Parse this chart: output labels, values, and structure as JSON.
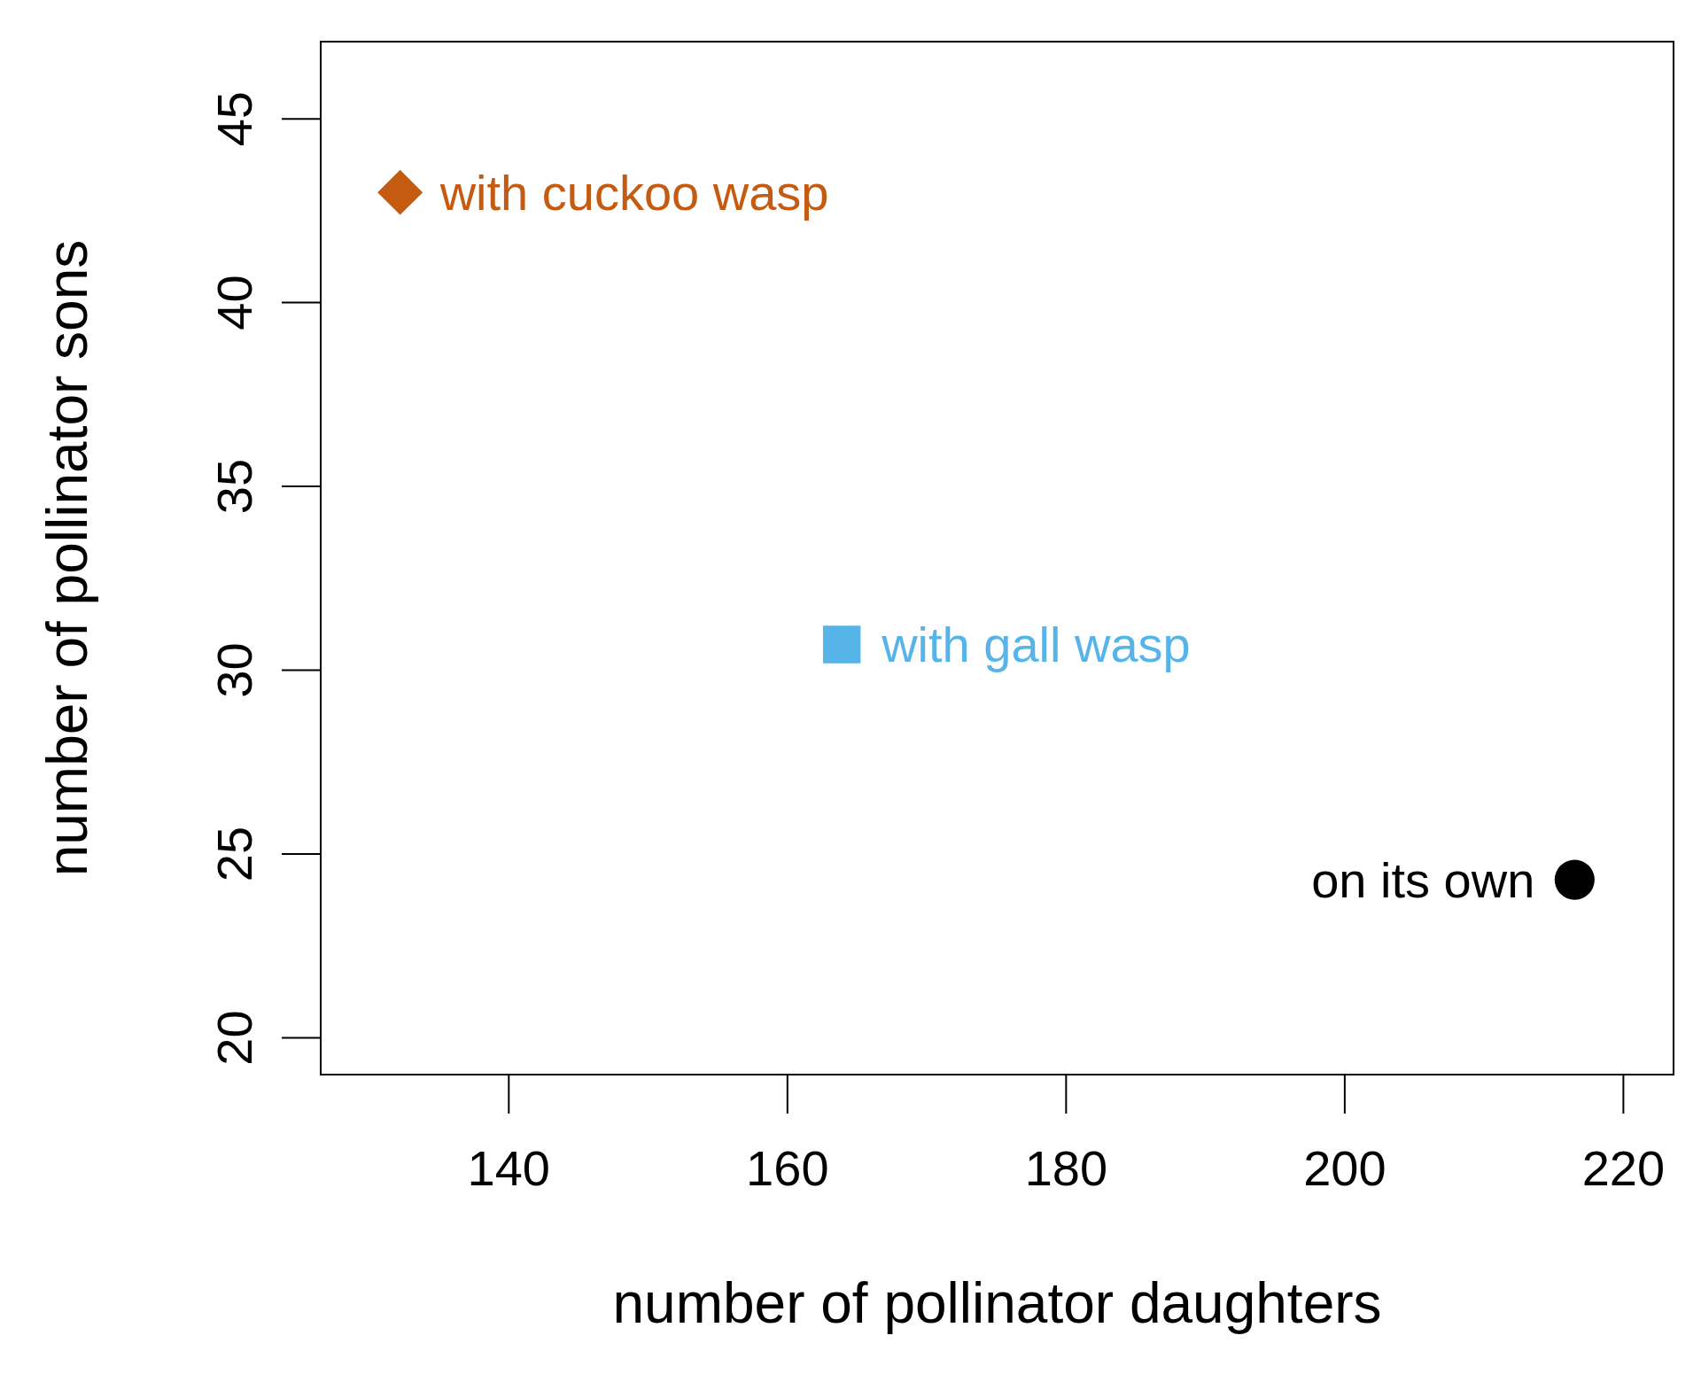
{
  "chart_data": {
    "type": "scatter",
    "xlabel": "number of pollinator daughters",
    "ylabel": "number of pollinator sons",
    "xlim": [
      126.5,
      223.6
    ],
    "ylim": [
      19,
      47.1
    ],
    "xticks": [
      140,
      160,
      180,
      200,
      220
    ],
    "yticks": [
      20,
      25,
      30,
      35,
      40,
      45
    ],
    "grid": false,
    "legend": false,
    "series": [
      {
        "name": "with cuckoo wasp",
        "color": "#c55a11",
        "marker": "diamond",
        "x": [
          132.2
        ],
        "values": [
          43.0
        ]
      },
      {
        "name": "with gall wasp",
        "color": "#56b4e9",
        "marker": "square",
        "x": [
          163.9
        ],
        "values": [
          30.7
        ]
      },
      {
        "name": "on its own",
        "color": "#000000",
        "marker": "circle",
        "x": [
          216.5
        ],
        "values": [
          24.3
        ]
      }
    ]
  }
}
